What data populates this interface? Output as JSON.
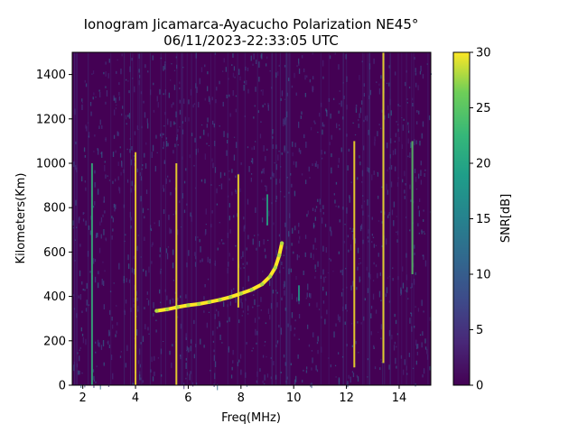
{
  "chart_data": {
    "type": "heatmap",
    "title_line1": "Ionogram Jicamarca-Ayacucho Polarization NE45°",
    "title_line2": "06/11/2023-22:33:05 UTC",
    "xlabel": "Freq(MHz)",
    "ylabel": "Kilometers(Km)",
    "colorbar_label": "SNR[dB]",
    "xlim": [
      1.6,
      15.2
    ],
    "ylim": [
      0,
      1500
    ],
    "x_ticks": [
      2,
      4,
      6,
      8,
      10,
      12,
      14
    ],
    "y_ticks": [
      0,
      200,
      400,
      600,
      800,
      1000,
      1200,
      1400
    ],
    "clim": [
      0,
      30
    ],
    "colorbar_ticks": [
      0,
      5,
      10,
      15,
      20,
      25,
      30
    ],
    "colormap": "viridis",
    "colors": {
      "background": "#440154",
      "low": "#3b528b",
      "mid": "#21918c",
      "high": "#5ec962",
      "max": "#fde725"
    },
    "ionogram_trace": [
      {
        "freq": 4.8,
        "height": 335
      },
      {
        "freq": 5.2,
        "height": 342
      },
      {
        "freq": 5.6,
        "height": 352
      },
      {
        "freq": 6.0,
        "height": 360
      },
      {
        "freq": 6.4,
        "height": 366
      },
      {
        "freq": 6.8,
        "height": 375
      },
      {
        "freq": 7.2,
        "height": 385
      },
      {
        "freq": 7.6,
        "height": 397
      },
      {
        "freq": 8.0,
        "height": 413
      },
      {
        "freq": 8.4,
        "height": 430
      },
      {
        "freq": 8.8,
        "height": 455
      },
      {
        "freq": 9.1,
        "height": 490
      },
      {
        "freq": 9.3,
        "height": 530
      },
      {
        "freq": 9.45,
        "height": 585
      },
      {
        "freq": 9.55,
        "height": 640
      }
    ],
    "vertical_interference": [
      {
        "freq": 2.35,
        "from": 0,
        "to": 1000,
        "snr": 22
      },
      {
        "freq": 4.0,
        "from": 0,
        "to": 1050,
        "snr": 30
      },
      {
        "freq": 5.55,
        "from": 0,
        "to": 1000,
        "snr": 30
      },
      {
        "freq": 7.9,
        "from": 350,
        "to": 950,
        "snr": 30
      },
      {
        "freq": 9.0,
        "from": 720,
        "to": 860,
        "snr": 20
      },
      {
        "freq": 10.2,
        "from": 380,
        "to": 450,
        "snr": 18
      },
      {
        "freq": 12.3,
        "from": 80,
        "to": 1100,
        "snr": 30
      },
      {
        "freq": 13.4,
        "from": 100,
        "to": 1500,
        "snr": 30
      },
      {
        "freq": 14.5,
        "from": 500,
        "to": 1100,
        "snr": 25
      }
    ]
  }
}
